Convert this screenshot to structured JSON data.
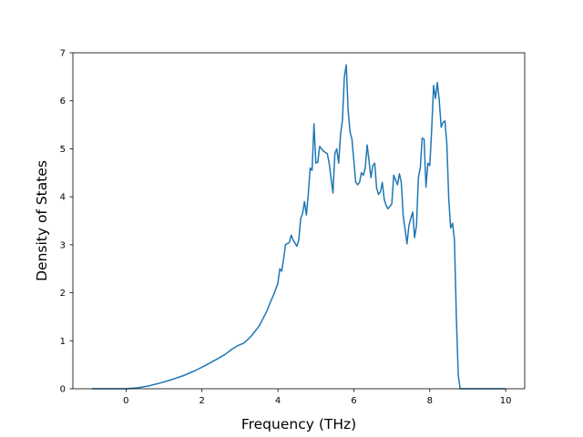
{
  "chart_data": {
    "type": "line",
    "title": "",
    "xlabel": "Frequency (THz)",
    "ylabel": "Density of States",
    "xlim": [
      -1.4,
      10.5
    ],
    "ylim": [
      0,
      7
    ],
    "x_ticks": [
      0,
      2,
      4,
      6,
      8,
      10
    ],
    "y_ticks": [
      0,
      1,
      2,
      3,
      4,
      5,
      6,
      7
    ],
    "grid": false,
    "series": [
      {
        "color": "#1f77b4",
        "x": [
          -0.9,
          -0.5,
          0,
          0.3,
          0.6,
          0.9,
          1.2,
          1.5,
          1.8,
          2.1,
          2.4,
          2.6,
          2.8,
          2.95,
          3.1,
          3.2,
          3.3,
          3.4,
          3.5,
          3.6,
          3.7,
          3.8,
          3.9,
          4.0,
          4.05,
          4.1,
          4.15,
          4.2,
          4.3,
          4.35,
          4.4,
          4.5,
          4.55,
          4.6,
          4.65,
          4.7,
          4.75,
          4.8,
          4.85,
          4.9,
          4.95,
          5.0,
          5.05,
          5.1,
          5.2,
          5.3,
          5.35,
          5.4,
          5.45,
          5.5,
          5.55,
          5.6,
          5.65,
          5.7,
          5.75,
          5.8,
          5.85,
          5.9,
          5.95,
          6.0,
          6.05,
          6.1,
          6.15,
          6.2,
          6.25,
          6.3,
          6.35,
          6.4,
          6.45,
          6.5,
          6.55,
          6.6,
          6.65,
          6.7,
          6.75,
          6.8,
          6.85,
          6.9,
          6.95,
          7.0,
          7.05,
          7.1,
          7.15,
          7.2,
          7.25,
          7.3,
          7.35,
          7.4,
          7.45,
          7.5,
          7.55,
          7.6,
          7.65,
          7.7,
          7.75,
          7.8,
          7.85,
          7.9,
          7.95,
          8.0,
          8.05,
          8.1,
          8.15,
          8.2,
          8.25,
          8.3,
          8.35,
          8.4,
          8.45,
          8.5,
          8.55,
          8.6,
          8.65,
          8.7,
          8.75,
          8.8,
          8.85,
          8.9,
          8.95,
          9.0,
          9.05,
          9.1,
          9.2,
          9.5,
          10.0
        ],
        "y": [
          0,
          0,
          0,
          0.02,
          0.06,
          0.12,
          0.19,
          0.27,
          0.37,
          0.49,
          0.62,
          0.71,
          0.83,
          0.9,
          0.95,
          1.02,
          1.1,
          1.2,
          1.3,
          1.45,
          1.6,
          1.8,
          1.98,
          2.2,
          2.5,
          2.45,
          2.7,
          3.0,
          3.05,
          3.2,
          3.1,
          2.97,
          3.1,
          3.55,
          3.65,
          3.9,
          3.62,
          4.05,
          4.6,
          4.55,
          5.52,
          4.7,
          4.72,
          5.05,
          4.95,
          4.9,
          4.7,
          4.38,
          4.08,
          4.9,
          5.0,
          4.7,
          5.3,
          5.6,
          6.5,
          6.75,
          5.8,
          5.35,
          5.2,
          4.75,
          4.3,
          4.25,
          4.3,
          4.5,
          4.45,
          4.6,
          5.08,
          4.75,
          4.4,
          4.65,
          4.7,
          4.18,
          4.05,
          4.1,
          4.3,
          3.95,
          3.82,
          3.75,
          3.8,
          3.85,
          4.45,
          4.35,
          4.25,
          4.48,
          4.3,
          3.6,
          3.32,
          3.02,
          3.4,
          3.55,
          3.68,
          3.15,
          3.4,
          4.4,
          4.6,
          5.22,
          5.2,
          4.2,
          4.7,
          4.65,
          5.4,
          6.32,
          6.05,
          6.38,
          6.0,
          5.45,
          5.55,
          5.58,
          5.1,
          3.95,
          3.35,
          3.45,
          3.1,
          1.5,
          0.28,
          0.0,
          0,
          0,
          0,
          0,
          0,
          0,
          0,
          0,
          0
        ]
      }
    ]
  }
}
